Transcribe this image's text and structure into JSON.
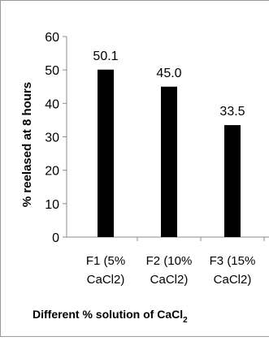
{
  "chart_data": {
    "type": "bar",
    "categories": [
      [
        "F1 (5%",
        "CaCl2)"
      ],
      [
        "F2 (10%",
        "CaCl2)"
      ],
      [
        "F3 (15%",
        "CaCl2)"
      ]
    ],
    "values": [
      50.1,
      45.0,
      33.5
    ],
    "value_labels": [
      "50.1",
      "45.0",
      "33.5"
    ],
    "ylim": [
      0,
      60
    ],
    "yticks": [
      0,
      10,
      20,
      30,
      40,
      50,
      60
    ],
    "ylabel": "% reelased at 8 hours",
    "xlabel_main": "Different % solution of CaCl",
    "xlabel_sub": "2",
    "grid": false,
    "legend": false,
    "bar_color": "#000000",
    "axis_color": "#8c8c8c"
  }
}
